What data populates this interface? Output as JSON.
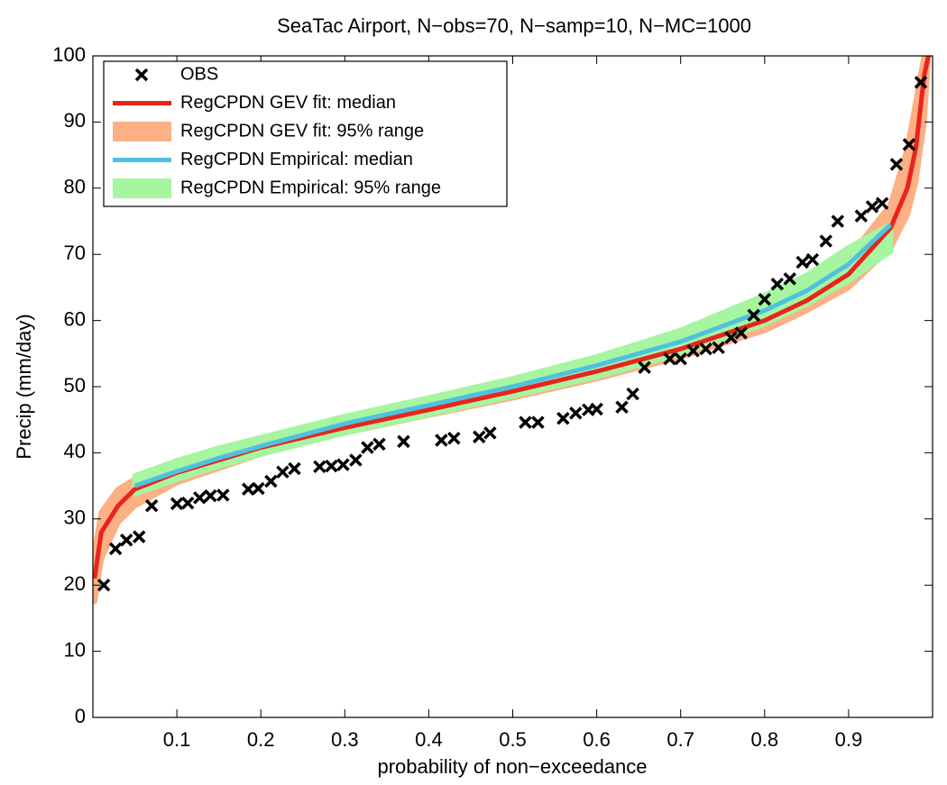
{
  "chart_data": {
    "type": "line",
    "title": "SeaTac Airport, N−obs=70, N−samp=10, N−MC=1000",
    "x_label": "probability of non−exceedance",
    "y_label": "Precip (mm/day)",
    "xlim": [
      0,
      1
    ],
    "ylim": [
      0,
      100
    ],
    "xticks": [
      0.1,
      0.2,
      0.3,
      0.4,
      0.5,
      0.6,
      0.7,
      0.8,
      0.9
    ],
    "yticks": [
      0,
      10,
      20,
      30,
      40,
      50,
      60,
      70,
      80,
      90,
      100
    ],
    "legend": "upper left",
    "series": [
      {
        "name": "OBS",
        "style": "marker",
        "color": "#000000",
        "x": [
          0.013,
          0.027,
          0.04,
          0.055,
          0.07,
          0.1,
          0.113,
          0.127,
          0.14,
          0.155,
          0.185,
          0.197,
          0.212,
          0.226,
          0.24,
          0.27,
          0.284,
          0.298,
          0.313,
          0.327,
          0.341,
          0.37,
          0.415,
          0.43,
          0.46,
          0.473,
          0.515,
          0.53,
          0.56,
          0.575,
          0.59,
          0.6,
          0.63,
          0.643,
          0.657,
          0.687,
          0.7,
          0.715,
          0.73,
          0.745,
          0.76,
          0.772,
          0.787,
          0.8,
          0.815,
          0.83,
          0.845,
          0.857,
          0.873,
          0.887,
          0.915,
          0.928,
          0.94,
          0.957,
          0.972,
          0.986
        ],
        "values": [
          20,
          25.5,
          26.8,
          27.3,
          32,
          32.3,
          32.4,
          33.2,
          33.5,
          33.6,
          34.5,
          34.6,
          35.7,
          37.1,
          37.6,
          37.9,
          38,
          38.2,
          38.9,
          40.8,
          41.3,
          41.7,
          41.9,
          42.2,
          42.4,
          43,
          44.6,
          44.6,
          45.2,
          46,
          46.5,
          46.6,
          46.9,
          48.9,
          52.9,
          54.2,
          54.2,
          55.4,
          55.7,
          55.9,
          57.4,
          58.1,
          60.8,
          63.2,
          65.5,
          66.3,
          68.8,
          69.2,
          72,
          75,
          75.8,
          77.2,
          77.7,
          83.6,
          86.6,
          96
        ]
      },
      {
        "name": "RegCPDN GEV fit: median",
        "style": "line",
        "color": "#e8241c",
        "x": [
          0.002,
          0.01,
          0.03,
          0.05,
          0.1,
          0.2,
          0.3,
          0.4,
          0.5,
          0.6,
          0.7,
          0.8,
          0.85,
          0.9,
          0.95,
          0.97,
          0.98,
          0.99,
          0.995
        ],
        "values": [
          21,
          28,
          32,
          34.5,
          37,
          40.8,
          43.8,
          46.5,
          49.3,
          52.3,
          55.7,
          60,
          63,
          67,
          74,
          80,
          86,
          97,
          100
        ]
      },
      {
        "name": "RegCPDN GEV fit: 95% range",
        "style": "band",
        "color": "#fdb084",
        "x": [
          0.002,
          0.01,
          0.03,
          0.05,
          0.1,
          0.2,
          0.3,
          0.4,
          0.5,
          0.6,
          0.7,
          0.8,
          0.85,
          0.9,
          0.95,
          0.97,
          0.98,
          0.99,
          0.995
        ],
        "lower": [
          17.5,
          24,
          29.5,
          32,
          35.5,
          39.8,
          43,
          45.7,
          48.3,
          51.2,
          54.5,
          58.5,
          61.5,
          65,
          71,
          76,
          81,
          90,
          100
        ],
        "upper": [
          25,
          31,
          34.5,
          36,
          38.5,
          42,
          45,
          47.6,
          50.3,
          53.3,
          57,
          61.5,
          64.8,
          69.5,
          77.5,
          86,
          93,
          100,
          100
        ]
      },
      {
        "name": "RegCPDN Empirical: median",
        "style": "line",
        "color": "#4fc1e0",
        "x": [
          0.05,
          0.1,
          0.15,
          0.2,
          0.3,
          0.4,
          0.5,
          0.6,
          0.7,
          0.8,
          0.85,
          0.9,
          0.95
        ],
        "values": [
          35,
          37.2,
          39.2,
          41,
          44.4,
          47.2,
          50,
          53.2,
          56.8,
          61.5,
          64.5,
          68.5,
          74.5
        ]
      },
      {
        "name": "RegCPDN Empirical: 95% range",
        "style": "band",
        "color": "#a6f5a0",
        "x": [
          0.05,
          0.1,
          0.15,
          0.2,
          0.3,
          0.4,
          0.5,
          0.6,
          0.7,
          0.8,
          0.85,
          0.9,
          0.95
        ],
        "lower": [
          33.8,
          36,
          38,
          39.8,
          43,
          45.8,
          48.6,
          51.5,
          55,
          59.5,
          62.5,
          66,
          70.5
        ],
        "upper": [
          36.5,
          38.8,
          40.7,
          42.3,
          45.5,
          48.3,
          51.2,
          54.5,
          58.5,
          63.8,
          66.8,
          71,
          74.5
        ]
      }
    ]
  }
}
